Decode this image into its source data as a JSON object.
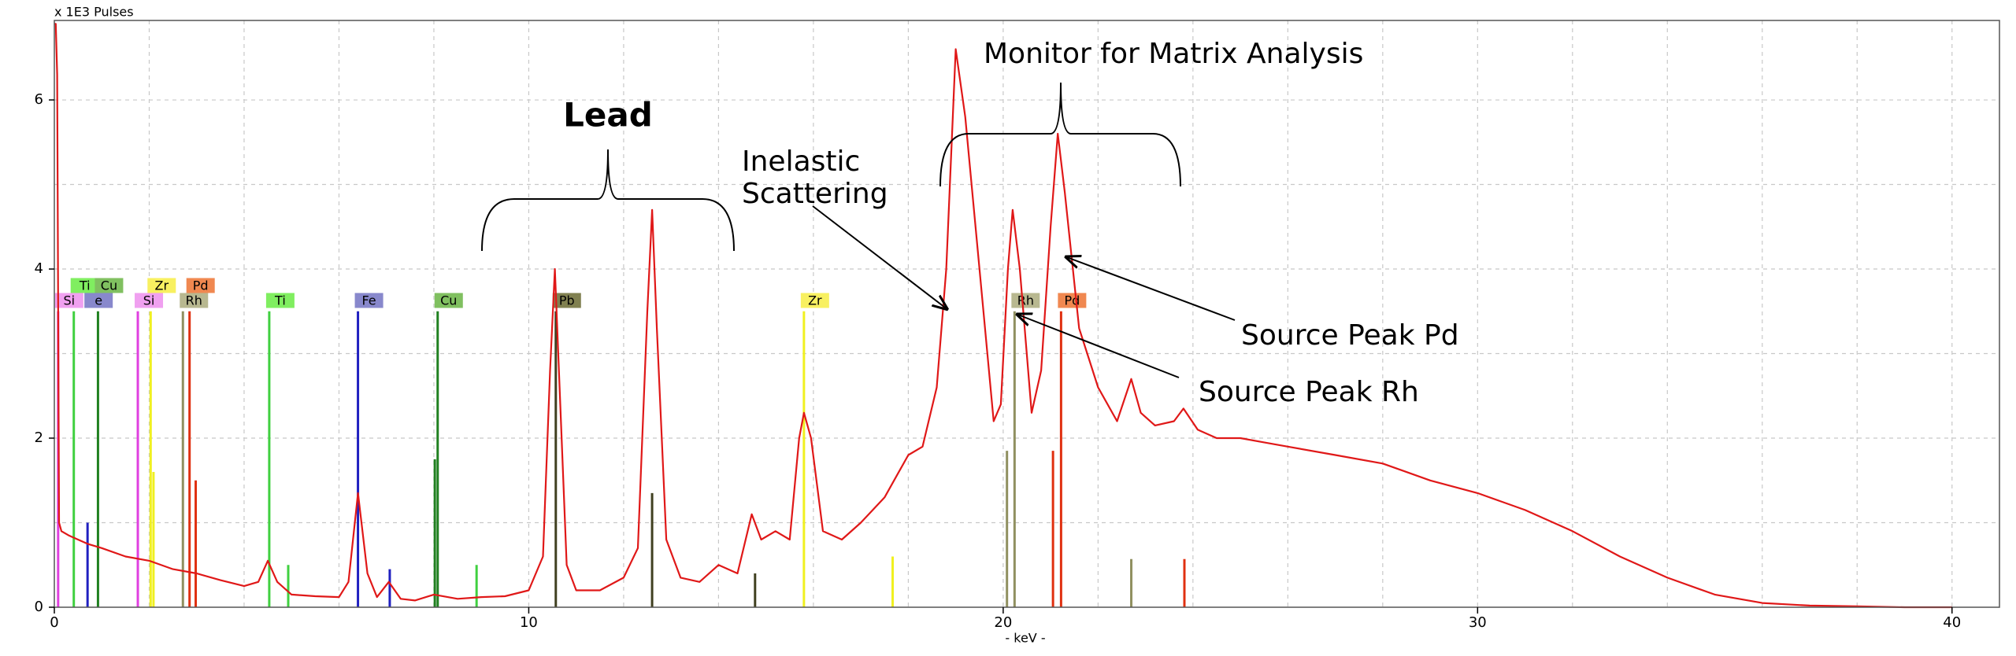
{
  "chart_data": {
    "type": "line",
    "y_axis_label": "x 1E3 Pulses",
    "x_axis_label": "- keV -",
    "xlim": [
      0,
      41
    ],
    "ylim": [
      0,
      6.94
    ],
    "xticks": [
      0,
      10,
      20,
      30,
      40
    ],
    "yticks": [
      0,
      2,
      4,
      6
    ],
    "xgrid": [
      2,
      4,
      6,
      8,
      10,
      12,
      14,
      16,
      18,
      20,
      22,
      24,
      26,
      28,
      30,
      32,
      34,
      36,
      38,
      40
    ],
    "ygrid": [
      1,
      2,
      3,
      4,
      5,
      6
    ],
    "series": [
      {
        "color": "#e01818",
        "x": [
          0,
          0.03,
          0.06,
          0.1,
          0.15,
          0.3,
          0.5,
          0.7,
          1,
          1.5,
          2,
          2.5,
          3,
          3.5,
          4,
          4.3,
          4.5,
          4.7,
          5,
          5.5,
          6,
          6.2,
          6.4,
          6.6,
          6.8,
          7.05,
          7.3,
          7.6,
          8,
          8.5,
          9,
          9.5,
          10,
          10.3,
          10.45,
          10.55,
          10.65,
          10.8,
          11,
          11.5,
          12,
          12.3,
          12.5,
          12.6,
          12.7,
          12.9,
          13.2,
          13.6,
          14,
          14.4,
          14.7,
          14.9,
          15.2,
          15.5,
          15.7,
          15.8,
          15.95,
          16.2,
          16.6,
          17,
          17.5,
          18,
          18.3,
          18.6,
          18.8,
          19.0,
          19.2,
          19.5,
          19.8,
          19.95,
          20.1,
          20.2,
          20.35,
          20.6,
          20.8,
          21.0,
          21.15,
          21.3,
          21.6,
          22,
          22.4,
          22.7,
          22.9,
          23.2,
          23.6,
          23.8,
          24.1,
          24.5,
          25,
          25.5,
          26,
          27,
          28,
          29,
          30,
          31,
          32,
          33,
          34,
          35,
          36,
          37,
          38,
          39,
          40
        ],
        "values": [
          6.9,
          6.9,
          6.3,
          1.0,
          0.9,
          0.85,
          0.8,
          0.75,
          0.7,
          0.6,
          0.55,
          0.45,
          0.4,
          0.32,
          0.25,
          0.3,
          0.55,
          0.3,
          0.15,
          0.13,
          0.12,
          0.3,
          1.35,
          0.4,
          0.12,
          0.3,
          0.1,
          0.08,
          0.15,
          0.1,
          0.12,
          0.13,
          0.2,
          0.6,
          2.8,
          4.0,
          2.6,
          0.5,
          0.2,
          0.2,
          0.35,
          0.7,
          3.5,
          4.7,
          3.3,
          0.8,
          0.35,
          0.3,
          0.5,
          0.4,
          1.1,
          0.8,
          0.9,
          0.8,
          2.0,
          2.3,
          2.0,
          0.9,
          0.8,
          1.0,
          1.3,
          1.8,
          1.9,
          2.6,
          4.0,
          6.6,
          5.8,
          4.0,
          2.2,
          2.4,
          4.0,
          4.7,
          4.0,
          2.3,
          2.8,
          4.5,
          5.6,
          4.9,
          3.3,
          2.6,
          2.2,
          2.7,
          2.3,
          2.15,
          2.2,
          2.35,
          2.1,
          2.0,
          2.0,
          1.95,
          1.9,
          1.8,
          1.7,
          1.5,
          1.35,
          1.15,
          0.9,
          0.6,
          0.35,
          0.15,
          0.05,
          0.02,
          0.01,
          0.0,
          0.0
        ]
      }
    ],
    "markers": [
      {
        "label": "Si",
        "x": 0.08,
        "y": 3.5,
        "color": "#e040e0",
        "box": "#f0a0f0"
      },
      {
        "label": "Ti",
        "x": 0.41,
        "y": 3.5,
        "color": "#40d040",
        "box": "#80ee60"
      },
      {
        "label": "e",
        "x": 0.7,
        "y": 1.0,
        "color": "#2020c0",
        "box": "#8888cc"
      },
      {
        "label": "Cu",
        "x": 0.92,
        "y": 3.5,
        "color": "#208020",
        "box": "#80c060"
      },
      {
        "label": "Si",
        "x": 1.76,
        "y": 3.5,
        "color": "#e040e0",
        "box": "#f0a0f0"
      },
      {
        "label": "Zr",
        "x": 2.03,
        "y": 3.5,
        "color": "#f0f020",
        "box": "#f8f060"
      },
      {
        "label": "Rh",
        "x": 2.71,
        "y": 3.5,
        "color": "#909060",
        "box": "#b8b890"
      },
      {
        "label": "Pd",
        "x": 2.85,
        "y": 3.5,
        "color": "#e03010",
        "box": "#f08850"
      },
      {
        "label": "Ti",
        "x": 4.53,
        "y": 3.5,
        "color": "#40d040",
        "box": "#80ee60"
      },
      {
        "label": "Fe",
        "x": 6.4,
        "y": 3.5,
        "color": "#2020c0",
        "box": "#8888cc"
      },
      {
        "label": "Cu",
        "x": 8.08,
        "y": 3.5,
        "color": "#208020",
        "box": "#80c060"
      },
      {
        "label": "Pb",
        "x": 10.57,
        "y": 3.5,
        "color": "#404020",
        "box": "#808050"
      },
      {
        "label": "Zr",
        "x": 15.8,
        "y": 3.5,
        "color": "#f0f020",
        "box": "#f8f060"
      },
      {
        "label": "Rh",
        "x": 20.24,
        "y": 3.5,
        "color": "#909060",
        "box": "#b8b890"
      },
      {
        "label": "Pd",
        "x": 21.22,
        "y": 3.5,
        "color": "#e03010",
        "box": "#f08850"
      },
      {
        "x": 2.09,
        "y": 1.6,
        "color": "#f0f020"
      },
      {
        "x": 2.98,
        "y": 1.5,
        "color": "#e03010"
      },
      {
        "x": 4.93,
        "y": 0.5,
        "color": "#40d040"
      },
      {
        "x": 7.07,
        "y": 0.45,
        "color": "#2020c0"
      },
      {
        "x": 8.02,
        "y": 1.75,
        "color": "#208020"
      },
      {
        "x": 8.9,
        "y": 0.5,
        "color": "#40d040"
      },
      {
        "x": 12.6,
        "y": 1.35,
        "color": "#404020"
      },
      {
        "x": 14.77,
        "y": 0.4,
        "color": "#404020"
      },
      {
        "x": 17.67,
        "y": 0.6,
        "color": "#f0f020"
      },
      {
        "x": 20.08,
        "y": 1.85,
        "color": "#909060"
      },
      {
        "x": 21.05,
        "y": 1.85,
        "color": "#e03010"
      },
      {
        "x": 22.7,
        "y": 0.57,
        "color": "#909060"
      },
      {
        "x": 23.82,
        "y": 0.57,
        "color": "#e03010"
      }
    ],
    "annotations": [
      "Lead",
      "Inelastic",
      "Scattering",
      "Monitor for Matrix Analysis",
      "Source Peak Pd",
      "Source Peak Rh"
    ]
  }
}
